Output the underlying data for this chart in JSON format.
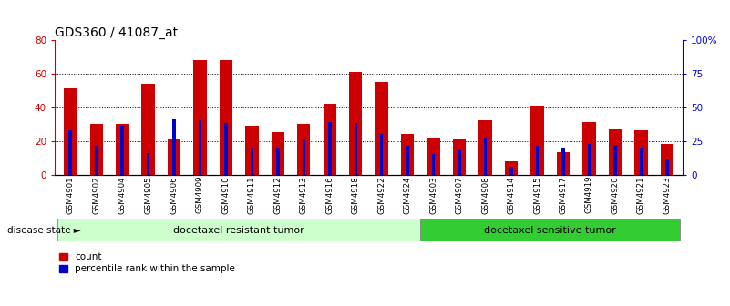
{
  "title": "GDS360 / 41087_at",
  "samples": [
    "GSM4901",
    "GSM4902",
    "GSM4904",
    "GSM4905",
    "GSM4906",
    "GSM4909",
    "GSM4910",
    "GSM4911",
    "GSM4912",
    "GSM4913",
    "GSM4916",
    "GSM4918",
    "GSM4922",
    "GSM4924",
    "GSM4903",
    "GSM4907",
    "GSM4908",
    "GSM4914",
    "GSM4915",
    "GSM4917",
    "GSM4919",
    "GSM4920",
    "GSM4921",
    "GSM4923"
  ],
  "counts": [
    51,
    30,
    30,
    54,
    21,
    68,
    68,
    29,
    25,
    30,
    42,
    61,
    55,
    24,
    22,
    21,
    32,
    8,
    41,
    13,
    31,
    27,
    26,
    18
  ],
  "percentile_ranks": [
    33,
    21,
    36,
    16,
    41,
    40,
    38,
    20,
    19,
    26,
    39,
    38,
    30,
    21,
    15,
    18,
    27,
    6,
    21,
    19,
    23,
    22,
    19,
    11
  ],
  "group1_count": 14,
  "group2_count": 10,
  "group1_label": "docetaxel resistant tumor",
  "group2_label": "docetaxel sensitive tumor",
  "disease_state_label": "disease state",
  "legend_count": "count",
  "legend_percentile": "percentile rank within the sample",
  "bar_color": "#CC0000",
  "percentile_color": "#0000CC",
  "group1_bg": "#CCFFCC",
  "group2_bg": "#33CC33",
  "ylim_left": [
    0,
    80
  ],
  "ylim_right": [
    0,
    100
  ],
  "yticks_left": [
    0,
    20,
    40,
    60,
    80
  ],
  "ytick_labels_left": [
    "0",
    "20",
    "40",
    "60",
    "80"
  ],
  "ytick_labels_right": [
    "0",
    "25",
    "50",
    "75",
    "100%"
  ],
  "title_fontsize": 10,
  "axis_color_left": "#CC0000",
  "axis_color_right": "#0000CC"
}
